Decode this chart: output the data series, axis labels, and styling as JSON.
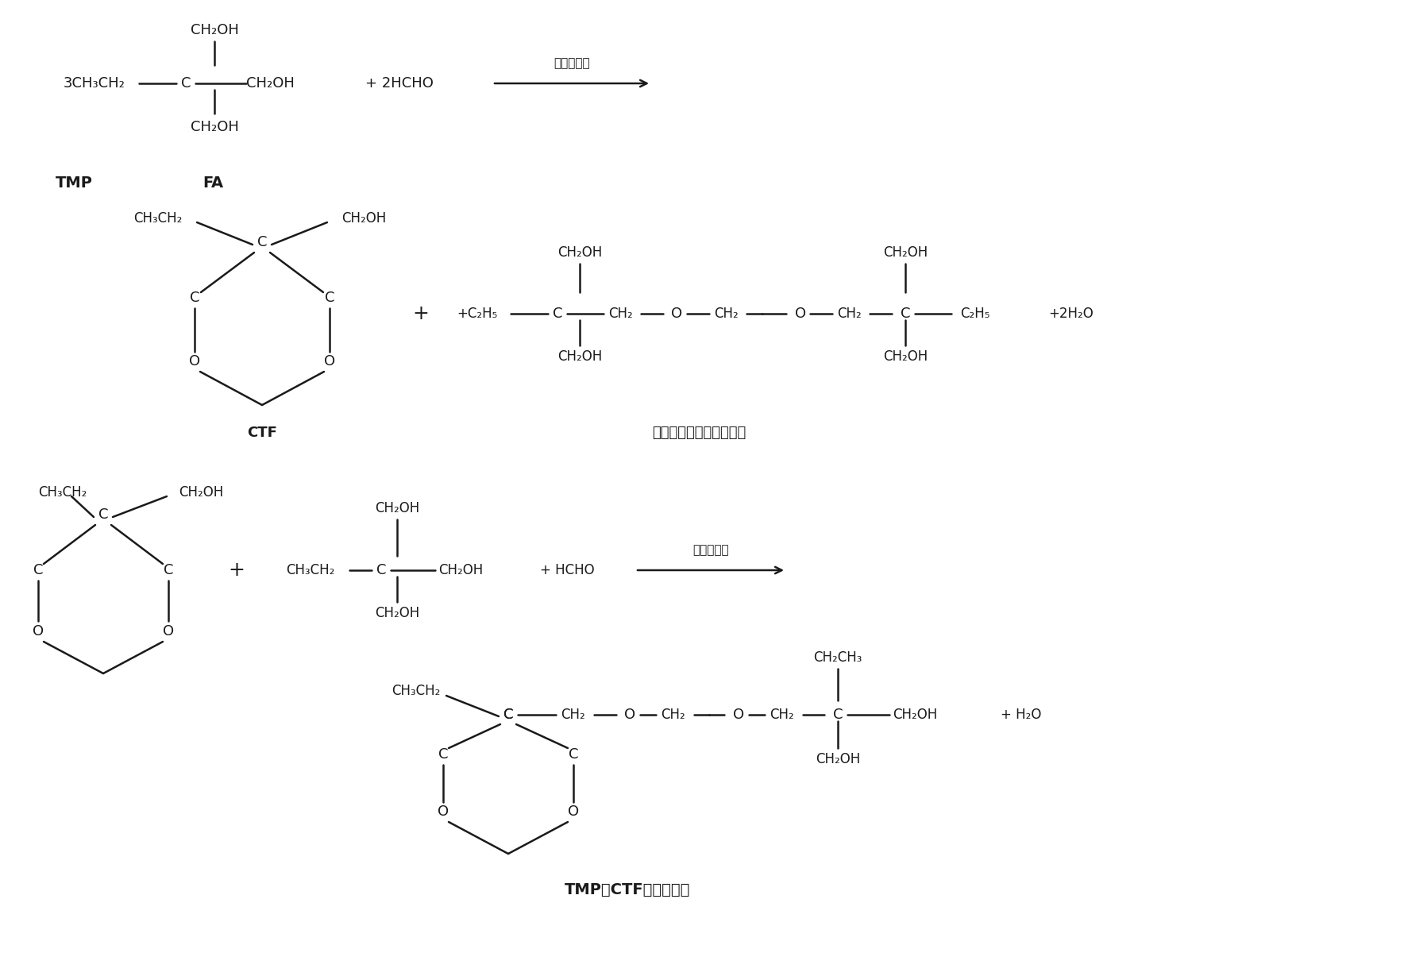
{
  "bg_color": "#ffffff",
  "text_color": "#1a1a1a",
  "line_color": "#1a1a1a",
  "catalyst1": "酸性催化剂",
  "catalyst3": "酸性催化剂",
  "tmp_label": "TMP",
  "fa_label": "FA",
  "ctf_label": "CTF",
  "linear_label": "三羟甲基丙烷线性缩甲醉",
  "tmp_ctf_label": "TMP－CTF线性缩甲醉"
}
